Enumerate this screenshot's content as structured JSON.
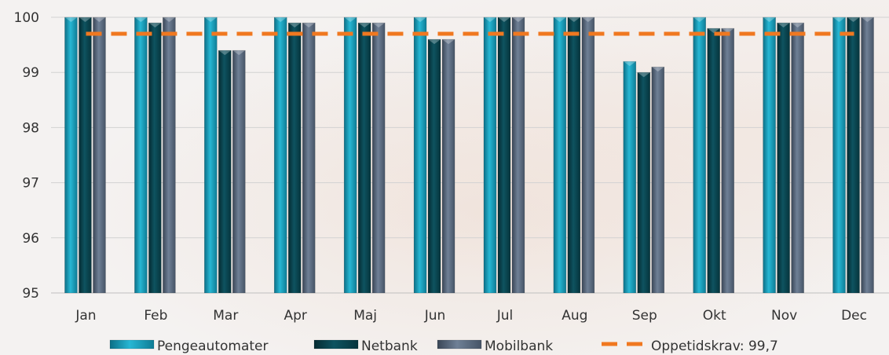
{
  "chart_data": {
    "type": "bar",
    "categories": [
      "Jan",
      "Feb",
      "Mar",
      "Apr",
      "Maj",
      "Jun",
      "Jul",
      "Aug",
      "Sep",
      "Okt",
      "Nov",
      "Dec"
    ],
    "series": [
      {
        "name": "Pengeautomater",
        "color": "#1aa0bd",
        "values": [
          100,
          100,
          100,
          100,
          100,
          100,
          100,
          100,
          99.2,
          100,
          100,
          100
        ]
      },
      {
        "name": "Netbank",
        "color": "#0a4650",
        "values": [
          100,
          99.9,
          99.4,
          99.9,
          99.9,
          99.6,
          100,
          100,
          99.0,
          99.8,
          99.9,
          100
        ]
      },
      {
        "name": "Mobilbank",
        "color": "#5a6a7c",
        "values": [
          100,
          100,
          99.4,
          99.9,
          99.9,
          99.6,
          100,
          100,
          99.1,
          99.8,
          99.9,
          100
        ]
      }
    ],
    "reference_line": {
      "label": "Oppetidskrav: 99,7",
      "value": 99.7,
      "color": "#f07820",
      "style": "dashed"
    },
    "yticks": [
      "95",
      "96",
      "97",
      "98",
      "99",
      "100"
    ],
    "ylim": [
      95,
      100
    ],
    "grid": true,
    "legend_position": "bottom"
  }
}
